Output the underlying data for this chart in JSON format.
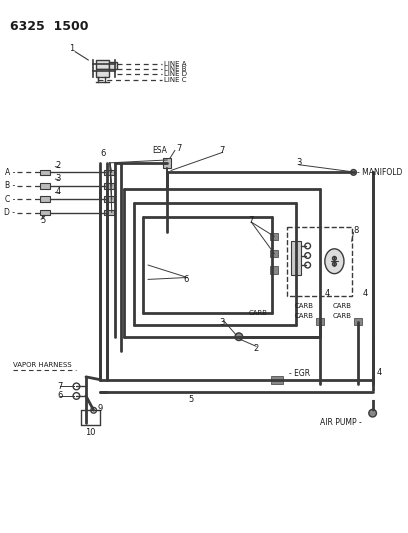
{
  "bg": "#ffffff",
  "lc": "#3a3a3a",
  "tc": "#1a1a1a",
  "title": "6325  1500",
  "line_a": "LINE A",
  "line_b": "LINE B",
  "line_d": "LINE D",
  "line_c": "LINE C",
  "manifold": "MANIFOLD",
  "esa": "ESA",
  "carb": "CARB",
  "egr": "EGR",
  "air_pump": "AIR PUMP",
  "vapor_harness": "VAPOR HARNESS",
  "lw_thick": 2.0,
  "lw_med": 1.4,
  "lw_thin": 1.0,
  "lw_dash": 0.9
}
